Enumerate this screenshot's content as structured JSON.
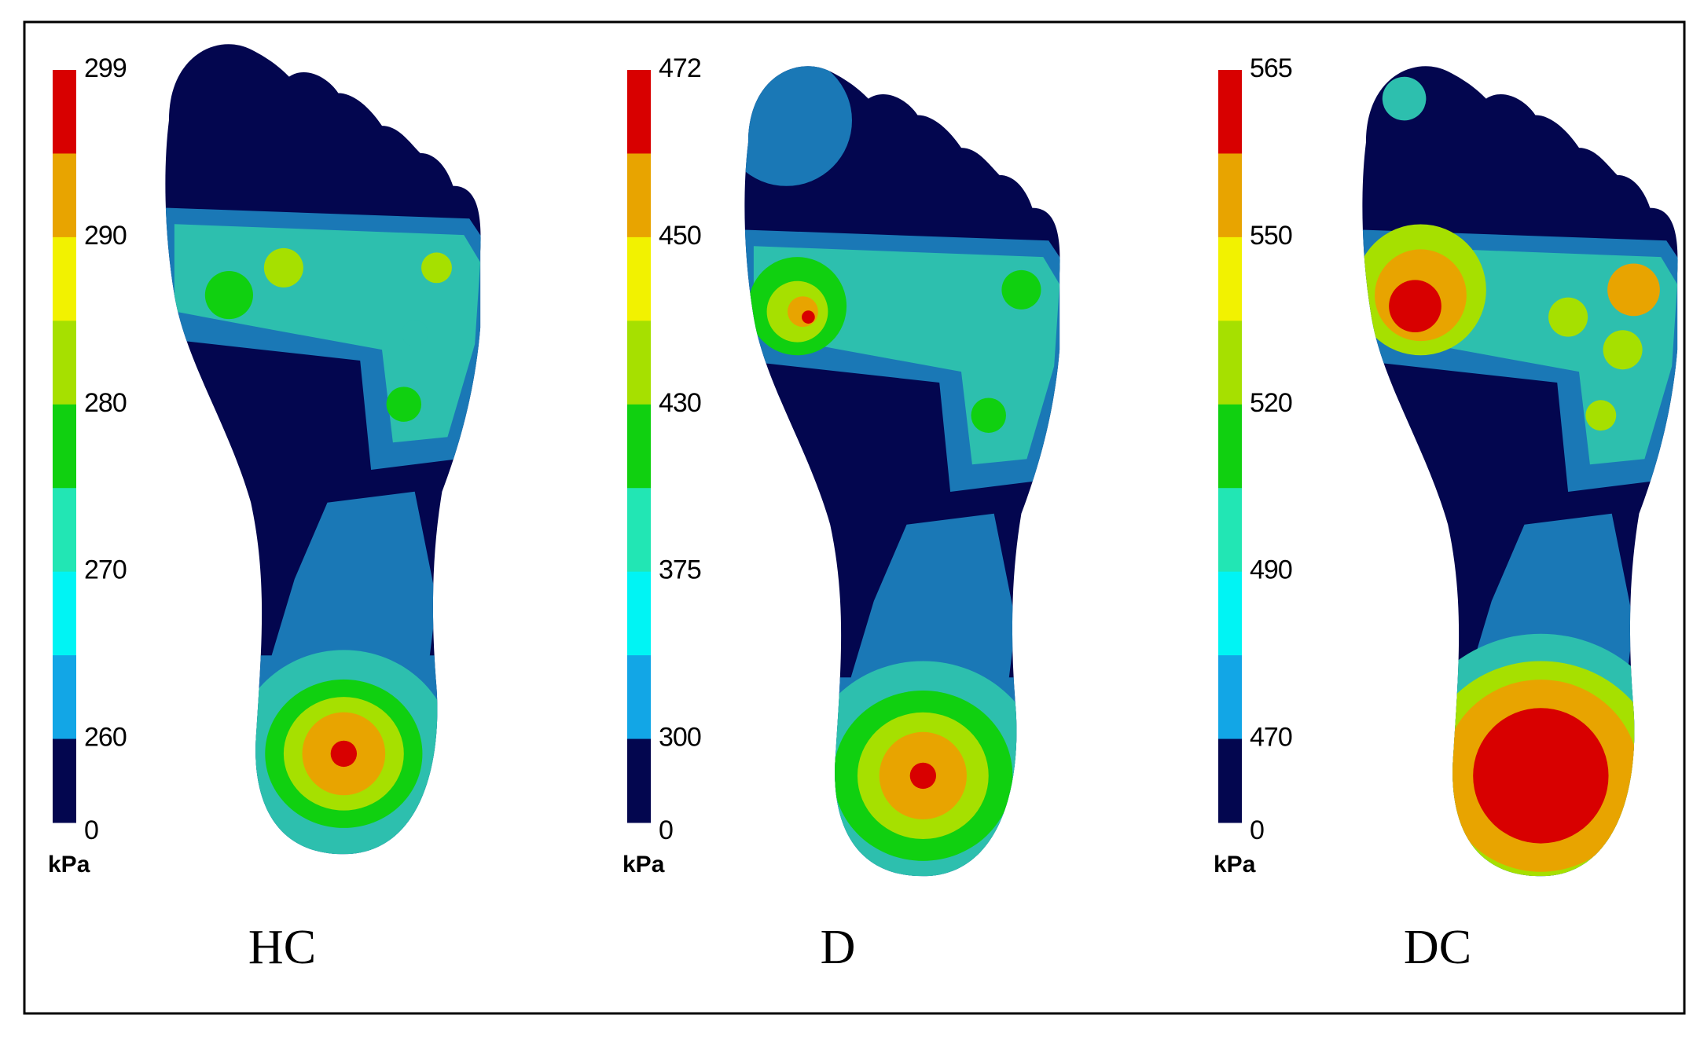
{
  "panels": [
    {
      "label": "HC",
      "unit": "kPa",
      "ticks": [
        299,
        290,
        280,
        270,
        260,
        0
      ]
    },
    {
      "label": "D",
      "unit": "kPa",
      "ticks": [
        472,
        450,
        430,
        375,
        300,
        0
      ]
    },
    {
      "label": "DC",
      "unit": "kPa",
      "ticks": [
        565,
        550,
        520,
        490,
        470,
        0
      ]
    }
  ]
}
